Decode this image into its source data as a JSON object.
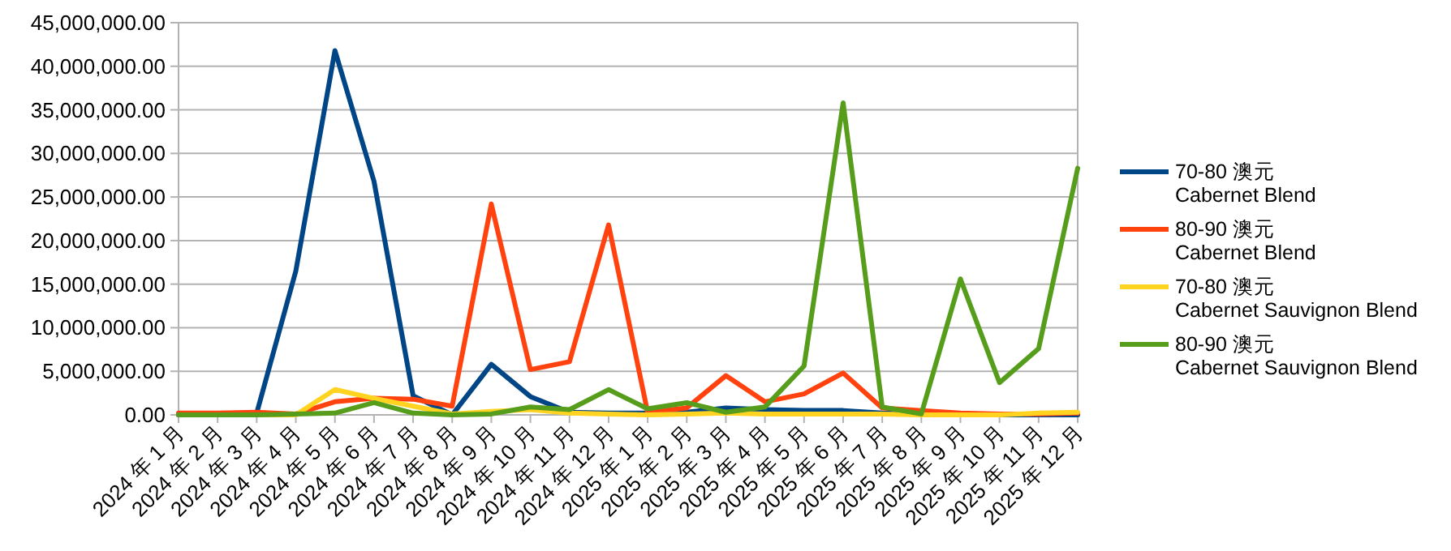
{
  "chart_data": {
    "type": "line",
    "categories": [
      "2024 年 1 月",
      "2024 年 2 月",
      "2024 年 3 月",
      "2024 年 4 月",
      "2024 年 5 月",
      "2024 年 6 月",
      "2024 年 7 月",
      "2024 年 8 月",
      "2024 年 9 月",
      "2024 年 10 月",
      "2024 年 11 月",
      "2024 年 12 月",
      "2025 年 1 月",
      "2025 年 2 月",
      "2025 年 3 月",
      "2025 年 4 月",
      "2025 年 5 月",
      "2025 年 6 月",
      "2025 年 7 月",
      "2025 年 8 月",
      "2025 年 9 月",
      "2025 年 10 月",
      "2025 年 11 月",
      "2025 年 12 月"
    ],
    "series": [
      {
        "name": "70-80 澳元\nCabernet Blend",
        "color": "#004586",
        "values": [
          0,
          0,
          200000,
          16500000,
          41800000,
          26800000,
          2200000,
          0,
          5800000,
          2100000,
          300000,
          200000,
          200000,
          300000,
          800000,
          600000,
          500000,
          500000,
          200000,
          100000,
          0,
          0,
          0,
          0
        ]
      },
      {
        "name": "80-90 澳元\nCabernet Blend",
        "color": "#ff420e",
        "values": [
          200000,
          200000,
          300000,
          100000,
          1500000,
          1900000,
          1800000,
          1000000,
          24200000,
          5200000,
          6100000,
          21800000,
          300000,
          800000,
          4500000,
          1500000,
          2400000,
          4800000,
          800000,
          500000,
          200000,
          100000,
          100000,
          200000
        ]
      },
      {
        "name": "70-80 澳元\nCabernet Sauvignon Blend",
        "color": "#ffd320",
        "values": [
          null,
          null,
          0,
          0,
          2900000,
          1900000,
          1000000,
          100000,
          400000,
          600000,
          200000,
          100000,
          0,
          100000,
          200000,
          100000,
          100000,
          100000,
          100000,
          0,
          0,
          0,
          200000,
          300000
        ]
      },
      {
        "name": "80-90 澳元\nCabernet Sauvignon Blend",
        "color": "#579d1c",
        "values": [
          0,
          0,
          0,
          100000,
          200000,
          1400000,
          200000,
          0,
          100000,
          900000,
          600000,
          2900000,
          700000,
          1400000,
          300000,
          900000,
          5600000,
          35800000,
          900000,
          100000,
          15600000,
          3700000,
          7600000,
          28300000
        ]
      }
    ],
    "ylim": [
      0,
      45000000
    ],
    "yticks": [
      {
        "value": 0,
        "label": "0.00"
      },
      {
        "value": 5000000,
        "label": "5,000,000.00"
      },
      {
        "value": 10000000,
        "label": "10,000,000.00"
      },
      {
        "value": 15000000,
        "label": "15,000,000.00"
      },
      {
        "value": 20000000,
        "label": "20,000,000.00"
      },
      {
        "value": 25000000,
        "label": "25,000,000.00"
      },
      {
        "value": 30000000,
        "label": "30,000,000.00"
      },
      {
        "value": 35000000,
        "label": "35,000,000.00"
      },
      {
        "value": 40000000,
        "label": "40,000,000.00"
      },
      {
        "value": 45000000,
        "label": "45,000,000.00"
      }
    ],
    "grid": "y",
    "legend": "right",
    "marker": "none",
    "line_style": "solid"
  }
}
